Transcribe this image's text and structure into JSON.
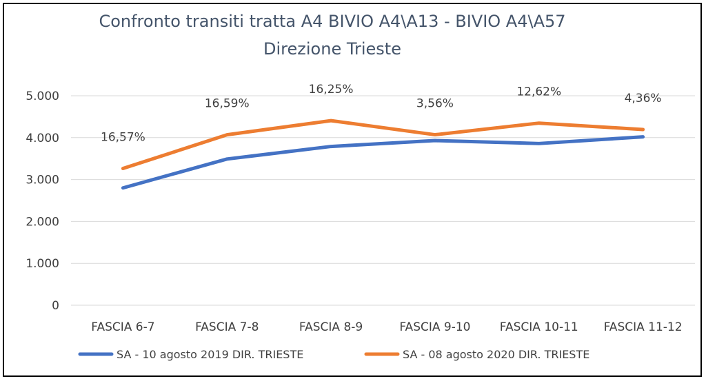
{
  "chart_data": {
    "type": "line",
    "title_lines": [
      "Confronto transiti tratta A4 BIVIO A4\\A13 - BIVIO A4\\A57",
      "Direzione Trieste"
    ],
    "xlabel": "",
    "ylabel": "",
    "categories": [
      "FASCIA 6-7",
      "FASCIA 7-8",
      "FASCIA 8-9",
      "FASCIA 9-10",
      "FASCIA 10-11",
      "FASCIA 11-12"
    ],
    "ylim": [
      0,
      5000
    ],
    "yticks": [
      0,
      1000,
      2000,
      3000,
      4000,
      5000
    ],
    "ytick_labels": [
      "0",
      "1.000",
      "2.000",
      "3.000",
      "4.000",
      "5.000"
    ],
    "grid": true,
    "legend_position": "bottom",
    "series": [
      {
        "name": "SA - 10 agosto 2019 DIR. TRIESTE",
        "color": "#4472c4",
        "values": [
          2800,
          3490,
          3790,
          3930,
          3860,
          4020
        ]
      },
      {
        "name": "SA - 08 agosto 2020 DIR. TRIESTE",
        "color": "#ed7d31",
        "values": [
          3264,
          4069,
          4406,
          4070,
          4347,
          4195
        ]
      }
    ],
    "data_labels": [
      "16,57%",
      "16,59%",
      "16,25%",
      "3,56%",
      "12,62%",
      "4,36%"
    ]
  }
}
